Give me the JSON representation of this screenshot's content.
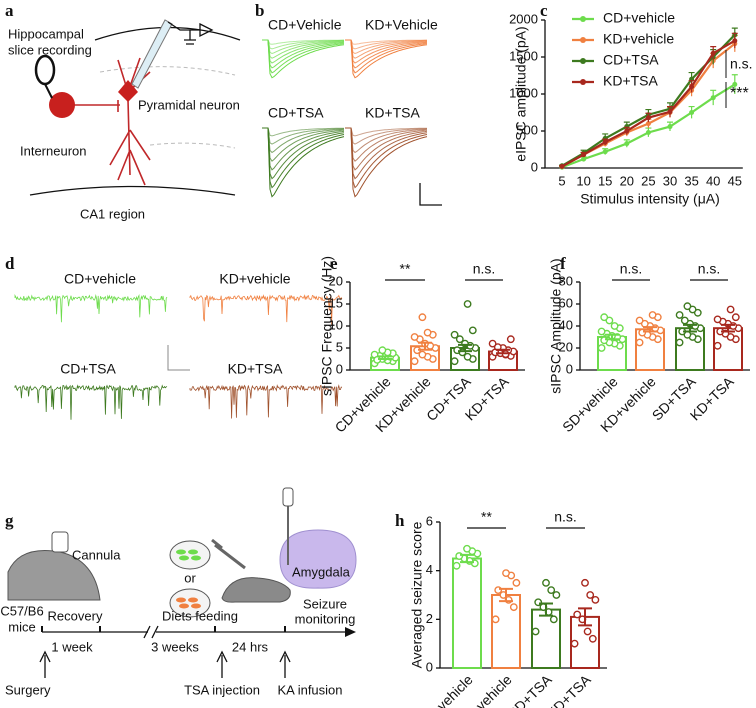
{
  "panels": [
    "a",
    "b",
    "c",
    "d",
    "e",
    "f",
    "g",
    "h"
  ],
  "panel_a": {
    "recording": [
      "Hippocampal",
      "slice recording"
    ],
    "pyramidal": "Pyramidal neuron",
    "interneuron": "Interneuron",
    "region": "CA1 region"
  },
  "panel_b": {
    "labels": [
      "CD+Vehicle",
      "KD+Vehicle",
      "CD+TSA",
      "KD+TSA"
    ]
  },
  "panel_d": {
    "labels": [
      "CD+vehicle",
      "KD+vehicle",
      "CD+TSA",
      "KD+TSA"
    ]
  },
  "panel_g": {
    "cannula": "Cannula",
    "or": "or",
    "amygdala": "Amygdala",
    "mice": [
      "C57/B6",
      "mice"
    ],
    "recovery": "Recovery",
    "diets": "Diets feeding",
    "seizure": [
      "Seizure",
      "monitoring"
    ],
    "durations": [
      "1 week",
      "3 weeks",
      "24 hrs"
    ],
    "events": [
      "Surgery",
      "TSA injection",
      "KA infusion"
    ]
  },
  "chart_data": [
    {
      "type": "line",
      "ylabel": "eIPSC amplitude (pA)",
      "xlabel": "Stimulus intensity (μA)",
      "categories": [
        "5",
        "10",
        "15",
        "20",
        "25",
        "30",
        "35",
        "40",
        "45"
      ],
      "ylim": [
        0,
        2000
      ],
      "yticks": [
        0,
        500,
        1000,
        1500,
        2000
      ],
      "series": [
        {
          "name": "CD+vehicle",
          "color": "#6ddc4c",
          "values": [
            10,
            120,
            220,
            330,
            480,
            560,
            750,
            950,
            1130
          ],
          "errors": [
            10,
            30,
            40,
            50,
            60,
            60,
            80,
            100,
            130
          ]
        },
        {
          "name": "KD+vehicle",
          "color": "#f08040",
          "values": [
            20,
            180,
            330,
            480,
            600,
            750,
            1050,
            1450,
            1680
          ],
          "errors": [
            10,
            30,
            40,
            50,
            60,
            70,
            80,
            100,
            110
          ]
        },
        {
          "name": "CD+TSA",
          "color": "#3d7a1f",
          "values": [
            30,
            200,
            400,
            560,
            720,
            800,
            1200,
            1500,
            1800
          ],
          "errors": [
            10,
            40,
            60,
            60,
            70,
            80,
            90,
            100,
            90
          ]
        },
        {
          "name": "KD+TSA",
          "color": "#a8281e",
          "values": [
            20,
            180,
            350,
            500,
            680,
            760,
            1100,
            1550,
            1720
          ],
          "errors": [
            10,
            30,
            40,
            50,
            60,
            70,
            80,
            90,
            100
          ]
        }
      ],
      "annotations": [
        "n.s.",
        "***"
      ]
    },
    {
      "type": "bar",
      "ylabel": "sIPSC Frequency (Hz)",
      "categories": [
        "CD+vehicle",
        "KD+vehicle",
        "CD+TSA",
        "KD+TSA"
      ],
      "colors": [
        "#6ddc4c",
        "#f08040",
        "#3d7a1f",
        "#a8281e"
      ],
      "values": [
        2.8,
        5.4,
        5.0,
        4.2
      ],
      "errors": [
        0.3,
        0.8,
        0.7,
        0.4
      ],
      "points": [
        [
          1.5,
          2,
          2.2,
          2.5,
          2.6,
          2.8,
          3,
          3,
          3.2,
          3.5,
          3.8,
          4,
          4.5,
          2.3
        ],
        [
          2,
          2.5,
          3,
          3.5,
          4.5,
          5,
          5.5,
          6,
          7,
          7.5,
          8,
          8.5,
          12
        ],
        [
          2,
          2.5,
          3,
          4,
          4.5,
          5,
          5.5,
          6,
          7,
          8,
          9,
          15
        ],
        [
          3,
          3.2,
          3.5,
          3.8,
          4,
          4.2,
          4.5,
          5,
          5.2,
          6,
          7,
          3.6
        ]
      ],
      "ylim": [
        0,
        20
      ],
      "yticks": [
        0,
        5,
        10,
        15,
        20
      ],
      "annotations": [
        "**",
        "n.s."
      ]
    },
    {
      "type": "bar",
      "ylabel": "sIPSC Amplitude (pA)",
      "categories": [
        "SD+vehicle",
        "KD+vehicle",
        "SD+TSA",
        "KD+TSA"
      ],
      "colors": [
        "#6ddc4c",
        "#f08040",
        "#3d7a1f",
        "#a8281e"
      ],
      "values": [
        30,
        37,
        38,
        38
      ],
      "errors": [
        2,
        2,
        3,
        3
      ],
      "points": [
        [
          20,
          22,
          24,
          25,
          27,
          28,
          30,
          31,
          33,
          35,
          38,
          40,
          45,
          48
        ],
        [
          25,
          28,
          30,
          32,
          34,
          36,
          38,
          40,
          42,
          45,
          48,
          50
        ],
        [
          25,
          28,
          30,
          32,
          35,
          38,
          40,
          42,
          45,
          50,
          52,
          55,
          58
        ],
        [
          22,
          28,
          30,
          33,
          35,
          38,
          40,
          42,
          44,
          46,
          48,
          55
        ]
      ],
      "ylim": [
        0,
        80
      ],
      "yticks": [
        0,
        20,
        40,
        60,
        80
      ],
      "annotations": [
        "n.s.",
        "n.s."
      ]
    },
    {
      "type": "bar",
      "ylabel": "Averaged seizure score",
      "categories": [
        "CD+vehicle",
        "KD+vehicle",
        "CD+TSA",
        "KD+TSA"
      ],
      "colors": [
        "#6ddc4c",
        "#f08040",
        "#3d7a1f",
        "#a8281e"
      ],
      "values": [
        4.5,
        3.0,
        2.4,
        2.1
      ],
      "errors": [
        0.15,
        0.25,
        0.25,
        0.35
      ],
      "points": [
        [
          4.2,
          4.3,
          4.4,
          4.5,
          4.6,
          4.7,
          4.8,
          4.9
        ],
        [
          2.0,
          2.5,
          2.8,
          3.0,
          3.2,
          3.5,
          3.8,
          3.9
        ],
        [
          1.5,
          2.0,
          2.3,
          2.5,
          2.7,
          3.0,
          3.2,
          3.5
        ],
        [
          1.0,
          1.2,
          1.5,
          2.0,
          2.2,
          2.8,
          3.0,
          3.5
        ]
      ],
      "ylim": [
        0,
        6
      ],
      "yticks": [
        0,
        2,
        4,
        6
      ],
      "annotations": [
        "**",
        "n.s."
      ]
    }
  ]
}
